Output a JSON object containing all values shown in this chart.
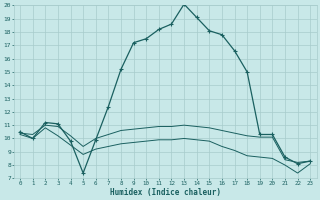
{
  "bg_color": "#c8e8e8",
  "grid_color": "#a8cccc",
  "line_color": "#1a6060",
  "xlabel": "Humidex (Indice chaleur)",
  "xlim": [
    -0.5,
    23.5
  ],
  "ylim": [
    7,
    20
  ],
  "yticks": [
    7,
    8,
    9,
    10,
    11,
    12,
    13,
    14,
    15,
    16,
    17,
    18,
    19,
    20
  ],
  "xticks": [
    0,
    1,
    2,
    3,
    4,
    5,
    6,
    7,
    8,
    9,
    10,
    11,
    12,
    13,
    14,
    15,
    16,
    17,
    18,
    19,
    20,
    21,
    22,
    23
  ],
  "line1_x": [
    0,
    1,
    2,
    3,
    4,
    5,
    6,
    7,
    8,
    9,
    10,
    11,
    12,
    13,
    14,
    15,
    16,
    17,
    18,
    19,
    20,
    21,
    22,
    23
  ],
  "line1_y": [
    10.5,
    10.0,
    11.2,
    11.1,
    9.8,
    7.4,
    9.9,
    12.4,
    15.2,
    17.2,
    17.5,
    18.2,
    18.6,
    20.1,
    19.1,
    18.1,
    17.8,
    16.6,
    15.0,
    10.3,
    10.3,
    8.6,
    8.1,
    8.3
  ],
  "line2_x": [
    0,
    1,
    2,
    3,
    4,
    5,
    6,
    7,
    8,
    9,
    10,
    11,
    12,
    13,
    14,
    15,
    16,
    17,
    18,
    19,
    20,
    21,
    22,
    23
  ],
  "line2_y": [
    10.4,
    10.3,
    11.0,
    10.9,
    10.2,
    9.4,
    10.0,
    10.3,
    10.6,
    10.7,
    10.8,
    10.9,
    10.9,
    11.0,
    10.9,
    10.8,
    10.6,
    10.4,
    10.2,
    10.1,
    10.1,
    8.4,
    8.2,
    8.3
  ],
  "line3_x": [
    0,
    1,
    2,
    3,
    4,
    5,
    6,
    7,
    8,
    9,
    10,
    11,
    12,
    13,
    14,
    15,
    16,
    17,
    18,
    19,
    20,
    21,
    22,
    23
  ],
  "line3_y": [
    10.3,
    10.0,
    10.8,
    10.2,
    9.5,
    8.8,
    9.2,
    9.4,
    9.6,
    9.7,
    9.8,
    9.9,
    9.9,
    10.0,
    9.9,
    9.8,
    9.4,
    9.1,
    8.7,
    8.6,
    8.5,
    8.0,
    7.4,
    8.1
  ]
}
